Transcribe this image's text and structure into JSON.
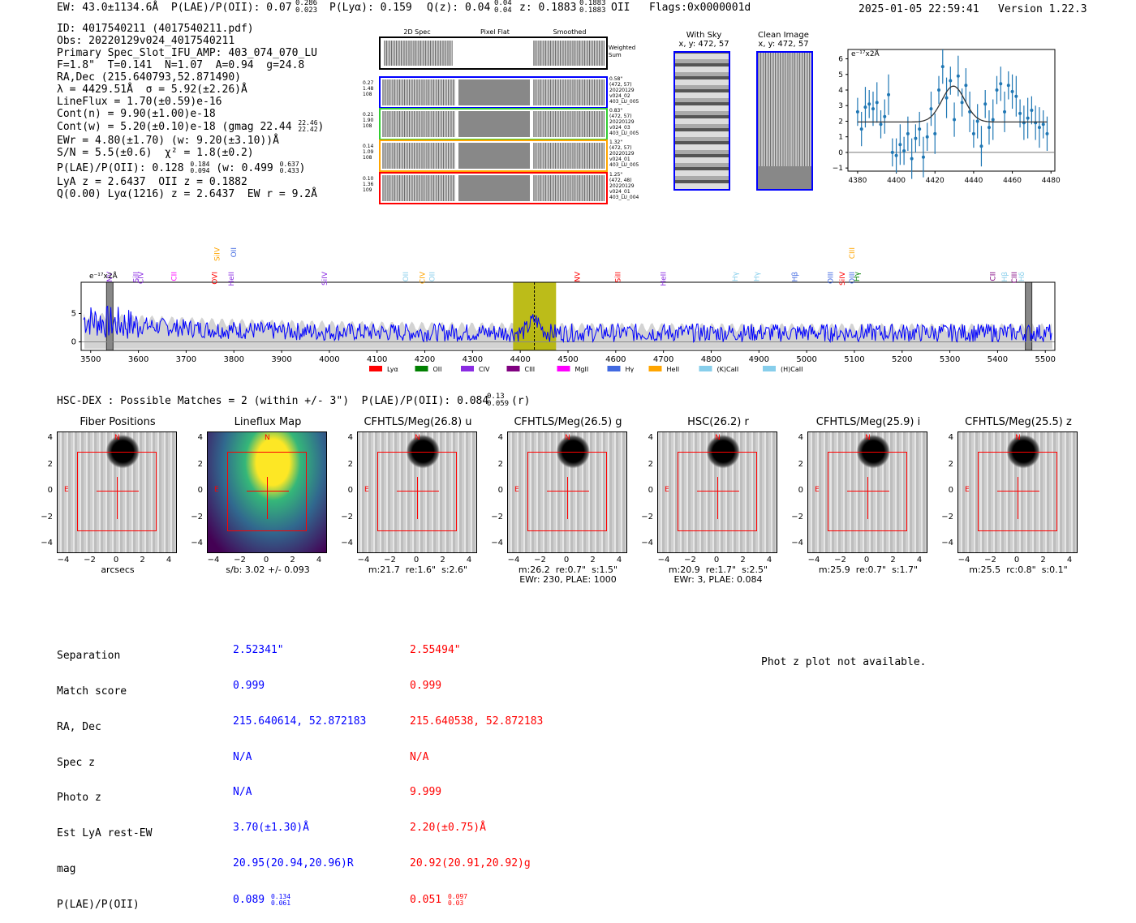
{
  "header": {
    "ew_line": "EW: 43.0±1134.6Å  P(LAE)/P(OII): 0.07",
    "ew_plae_sup": "0.286",
    "ew_plae_sub": "0.023",
    "plya": "P(Lyα): 0.159",
    "qz": "Q(z): 0.04",
    "qz_sup": "0.04",
    "qz_sub": "0.04",
    "z": "z: 0.1883",
    "z_sup": "0.1883",
    "z_sub": "0.1883",
    "z_tag": "OII",
    "flags": "Flags:0x0000001d",
    "timestamp": "2025-01-05 22:59:41",
    "version": "Version 1.22.3"
  },
  "info": {
    "id": "ID: 4017540211 (4017540211.pdf)",
    "obs": "Obs: 20220129v024_4017540211",
    "primary": "Primary Spec_Slot_IFU_AMP: 403_074_070_LU",
    "fiber": "F=1.8\"  T=0.141  N=1.07  A=0.94  g=24.8",
    "radec": "RA,Dec (215.640793,52.871490)",
    "lambda": "λ = 4429.51Å  σ = 5.92(±2.26)Å",
    "lineflux": "LineFlux = 1.70(±0.59)e-16",
    "contn": "Cont(n) = 9.90(±1.00)e-18",
    "contw": "Cont(w) = 5.20(±0.10)e-18 (gmag 22.44",
    "contw_sup": "22.46",
    "contw_sub": "22.42",
    "ewr": "EWr = 4.80(±1.70) (w: 9.20(±3.10))Å",
    "sn": "S/N = 5.5(±0.6)  χ² = 1.8(±0.2)",
    "plae": "P(LAE)/P(OII): 0.128",
    "plae_sup": "0.184",
    "plae_sub": "0.094",
    "plae_w": "(w: 0.499",
    "plae_w_sup": "0.637",
    "plae_w_sub": "0.433",
    "lya": "LyA z = 2.6437  OII z = 0.1882",
    "q": "Q(0.00) Lyα(1216) z = 2.6437  EW r = 9.2Å"
  },
  "cutouts": {
    "col_titles": [
      "2D Spec",
      "Pixel Flat",
      "Smoothed"
    ],
    "weighted": "Weighted Sum",
    "rows": [
      {
        "left": "0.27\n1.48\n108",
        "right": "0.58\"\n(472, 57)\n20220129\nv024_02\n403_LU_005"
      },
      {
        "left": "0.21\n1.90\n108",
        "right": "0.83\"\n(472, 57)\n20220129\nv024_03\n403_LU_005"
      },
      {
        "left": "0.14\n1.09\n108",
        "right": "1.32\"\n(472, 57)\n20220129\nv024_01\n403_LU_005"
      },
      {
        "left": "0.10\n1.36\n109",
        "right": "1.25\"\n(472, 48)\n20220129\nv024_01\n403_LU_004"
      }
    ],
    "with_sky": "With Sky",
    "with_sky_xy": "x, y: 472, 57",
    "clean": "Clean Image",
    "clean_xy": "x, y: 472, 57"
  },
  "line_fit": {
    "unit": "e⁻¹⁷x2Å",
    "xticks": [
      "4380",
      "4400",
      "4420",
      "4440",
      "4460",
      "4480"
    ],
    "yticks": [
      "−1",
      "0",
      "1",
      "2",
      "3",
      "4",
      "5",
      "6"
    ]
  },
  "spectrum": {
    "unit": "e⁻¹⁷x2Å",
    "xticks": [
      "3500",
      "3600",
      "3700",
      "3800",
      "3900",
      "4000",
      "4100",
      "4200",
      "4300",
      "4400",
      "4500",
      "4600",
      "4700",
      "4800",
      "4900",
      "5000",
      "5100",
      "5200",
      "5300",
      "5400",
      "5500"
    ],
    "yticks": [
      "5",
      "0"
    ],
    "legend": [
      {
        "label": "Lyα",
        "color": "#ff0000"
      },
      {
        "label": "OII",
        "color": "#008000"
      },
      {
        "label": "CIV",
        "color": "#8a2be2"
      },
      {
        "label": "CIII",
        "color": "#800080"
      },
      {
        "label": "MgII",
        "color": "#ff00ff"
      },
      {
        "label": "Hγ",
        "color": "#4169e1"
      },
      {
        "label": "HeII",
        "color": "#ffa500"
      },
      {
        "label": "(K)CaII",
        "color": "#87ceeb"
      },
      {
        "label": "(H)CaII",
        "color": "#87ceeb"
      }
    ],
    "line_labels": [
      {
        "t": "NV",
        "c": "#8a2be2"
      },
      {
        "t": "SiII",
        "c": "#8a2be2"
      },
      {
        "t": "CIV",
        "c": "#8a2be2"
      },
      {
        "t": "CII",
        "c": "#ff00ff"
      },
      {
        "t": "OVI",
        "c": "#ff0000"
      },
      {
        "t": "SiIV",
        "c": "#ffa500"
      },
      {
        "t": "HeII",
        "c": "#8a2be2"
      },
      {
        "t": "OII",
        "c": "#4169e1"
      },
      {
        "t": "SiIV",
        "c": "#8a2be2"
      },
      {
        "t": "OII",
        "c": "#87ceeb"
      },
      {
        "t": "CIV",
        "c": "#ffa500"
      },
      {
        "t": "OII",
        "c": "#87ceeb"
      },
      {
        "t": "NV",
        "c": "#ff0000"
      },
      {
        "t": "SiII",
        "c": "#ff0000"
      },
      {
        "t": "HeII",
        "c": "#8a2be2"
      },
      {
        "t": "Hγ",
        "c": "#87ceeb"
      },
      {
        "t": "Hγ",
        "c": "#87ceeb"
      },
      {
        "t": "Hβ",
        "c": "#4169e1"
      },
      {
        "t": "OIII",
        "c": "#4169e1"
      },
      {
        "t": "SiIV",
        "c": "#ff0000"
      },
      {
        "t": "OIII",
        "c": "#4169e1"
      },
      {
        "t": "CIII",
        "c": "#ffa500"
      },
      {
        "t": "Hγ",
        "c": "#008000"
      },
      {
        "t": "CII",
        "c": "#800080"
      },
      {
        "t": "Hβ",
        "c": "#87ceeb"
      },
      {
        "t": "CIII",
        "c": "#800080"
      },
      {
        "t": "Hδ",
        "c": "#87ceeb"
      }
    ]
  },
  "hsc": {
    "title": "HSC-DEX : Possible Matches = 2 (within +/- 3\")  P(LAE)/P(OII): 0.084",
    "sup": "0.13",
    "sub": "0.059",
    "tail": "(r)"
  },
  "panels": [
    {
      "title": "Fiber Positions",
      "cap": "arcsecs"
    },
    {
      "title": "Lineflux Map",
      "cap": "s/b: 3.02 +/- 0.093"
    },
    {
      "title": "CFHTLS/Meg(26.8) u",
      "cap": "m:21.7  re:1.6\"  s:2.6\""
    },
    {
      "title": "CFHTLS/Meg(26.5) g",
      "cap": "m:26.2  re:0.7\"  s:1.5\"\nEWr: 230, PLAE: 1000"
    },
    {
      "title": "HSC(26.2) r",
      "cap": "m:20.9  re:1.7\"  s:2.5\"\nEWr: 3, PLAE: 0.084"
    },
    {
      "title": "CFHTLS/Meg(25.9) i",
      "cap": "m:25.9  re:0.7\"  s:1.7\""
    },
    {
      "title": "CFHTLS/Meg(25.5) z",
      "cap": "m:25.5  rc:0.8\"  s:0.1\""
    }
  ],
  "panel_ticks": {
    "y": [
      "4",
      "2",
      "0",
      "−2",
      "−4"
    ],
    "x": [
      "−4",
      "−2",
      "0",
      "2",
      "4"
    ],
    "north": "N",
    "east": "E"
  },
  "match_table": {
    "labels": [
      "Separation",
      "Match score",
      "RA, Dec",
      "Spec z",
      "Photo z",
      "Est LyA rest-EW",
      "mag",
      "P(LAE)/P(OII)"
    ],
    "blue": [
      "2.52341\"",
      "0.999",
      "215.640614, 52.872183",
      "N/A",
      "N/A",
      "3.70(±1.30)Å",
      "20.95(20.94,20.96)R",
      "0.089"
    ],
    "blue_sup": "0.134",
    "blue_sub": "0.061",
    "red": [
      "2.55494\"",
      "0.999",
      "215.640538, 52.872183",
      "N/A",
      "9.999",
      "2.20(±0.75)Å",
      "20.92(20.91,20.92)g",
      "0.051"
    ],
    "red_sup": "0.097",
    "red_sub": "0.03"
  },
  "photz_msg": "Phot z plot not available.",
  "chart_data": [
    {
      "type": "scatter",
      "title": "",
      "xlabel": "",
      "ylabel": "e⁻¹⁷x2Å",
      "xlim": [
        4375,
        4482
      ],
      "ylim": [
        -1.2,
        6.6
      ],
      "points": [
        [
          4380,
          2.6
        ],
        [
          4382,
          1.5
        ],
        [
          4384,
          2.9
        ],
        [
          4386,
          3.1
        ],
        [
          4388,
          2.8
        ],
        [
          4390,
          3.2
        ],
        [
          4392,
          1.8
        ],
        [
          4394,
          2.3
        ],
        [
          4396,
          3.7
        ],
        [
          4398,
          0.0
        ],
        [
          4400,
          -0.2
        ],
        [
          4402,
          0.5
        ],
        [
          4404,
          0.1
        ],
        [
          4406,
          1.2
        ],
        [
          4408,
          -0.4
        ],
        [
          4410,
          0.9
        ],
        [
          4412,
          1.5
        ],
        [
          4414,
          -0.3
        ],
        [
          4416,
          1.0
        ],
        [
          4418,
          2.8
        ],
        [
          4420,
          1.2
        ],
        [
          4422,
          4.0
        ],
        [
          4424,
          5.5
        ],
        [
          4426,
          3.5
        ],
        [
          4428,
          4.6
        ],
        [
          4430,
          2.1
        ],
        [
          4432,
          4.9
        ],
        [
          4434,
          3.2
        ],
        [
          4436,
          4.3
        ],
        [
          4438,
          2.6
        ],
        [
          4440,
          1.2
        ],
        [
          4442,
          2.0
        ],
        [
          4444,
          0.4
        ],
        [
          4446,
          3.1
        ],
        [
          4448,
          1.6
        ],
        [
          4450,
          2.1
        ],
        [
          4452,
          4.0
        ],
        [
          4454,
          4.4
        ],
        [
          4456,
          2.6
        ],
        [
          4458,
          4.3
        ],
        [
          4460,
          3.9
        ],
        [
          4462,
          3.6
        ],
        [
          4464,
          2.5
        ],
        [
          4466,
          1.9
        ],
        [
          4468,
          2.2
        ],
        [
          4470,
          2.7
        ],
        [
          4472,
          1.9
        ],
        [
          4474,
          1.6
        ],
        [
          4476,
          1.8
        ],
        [
          4478,
          1.2
        ]
      ],
      "model": {
        "center": 4429.51,
        "sigma": 5.92,
        "continuum": 1.95,
        "amplitude": 2.3
      }
    },
    {
      "type": "line",
      "title": "",
      "xlabel": "",
      "ylabel": "e⁻¹⁷x2Å",
      "xlim": [
        3480,
        5520
      ],
      "ylim": [
        -1.5,
        10.5
      ],
      "highlight_band": [
        4385,
        4475
      ],
      "marker_x": 4429.51,
      "grey_bars": [
        3540,
        5465
      ]
    }
  ]
}
